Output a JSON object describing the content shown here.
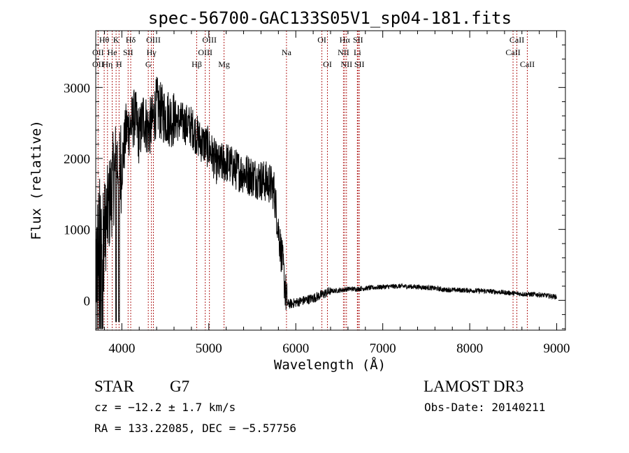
{
  "chart_data": {
    "type": "line",
    "title": "spec-56700-GAC133S05V1_sp04-181.fits",
    "xlabel": "Wavelength (Å)",
    "ylabel": "Flux (relative)",
    "xlim": [
      3700,
      9100
    ],
    "ylim": [
      -420,
      3800
    ],
    "xticks": [
      4000,
      5000,
      6000,
      7000,
      8000,
      9000
    ],
    "yticks": [
      0,
      1000,
      2000,
      3000
    ],
    "xtick_labels": [
      "4000",
      "5000",
      "6000",
      "7000",
      "8000",
      "9000"
    ],
    "ytick_labels": [
      "0",
      "1000",
      "2000",
      "3000"
    ],
    "series": [
      {
        "name": "flux",
        "color": "#000000",
        "x": [
          3700,
          3750,
          3800,
          3850,
          3900,
          3950,
          4000,
          4050,
          4100,
          4150,
          4200,
          4250,
          4300,
          4350,
          4400,
          4450,
          4500,
          4600,
          4700,
          4800,
          4900,
          5000,
          5100,
          5200,
          5300,
          5400,
          5500,
          5600,
          5700,
          5750,
          5800,
          5850,
          5880,
          5900,
          5950,
          6000,
          6100,
          6200,
          6300,
          6400,
          6500,
          6600,
          6700,
          6800,
          7000,
          7200,
          7400,
          7600,
          7700,
          8000,
          8200,
          8400,
          8600,
          8800,
          9000
        ],
        "y": [
          500,
          900,
          1000,
          1300,
          1700,
          2000,
          1900,
          2400,
          2450,
          2600,
          2300,
          2600,
          2400,
          2500,
          2750,
          2650,
          2600,
          2550,
          2500,
          2450,
          2250,
          2150,
          1900,
          1950,
          1850,
          1800,
          1750,
          1700,
          1650,
          1550,
          1000,
          500,
          150,
          -50,
          -50,
          -30,
          0,
          30,
          80,
          130,
          140,
          160,
          160,
          170,
          190,
          200,
          190,
          170,
          150,
          140,
          130,
          110,
          90,
          80,
          50
        ]
      }
    ],
    "line_labels": [
      {
        "label": "Hδ",
        "x": 4102,
        "row": 0
      },
      {
        "label": "K",
        "x": 3934,
        "row": 0
      },
      {
        "label": "Hθ",
        "x": 3797,
        "row": 0
      },
      {
        "label": "OII",
        "x": 3727,
        "row": 1
      },
      {
        "label": "He",
        "x": 3889,
        "row": 1
      },
      {
        "label": "SII",
        "x": 4072,
        "row": 1
      },
      {
        "label": "OII",
        "x": 3727,
        "row": 2
      },
      {
        "label": "Hη",
        "x": 3835,
        "row": 2
      },
      {
        "label": "H",
        "x": 3968,
        "row": 2
      },
      {
        "label": "OIII",
        "x": 4363,
        "row": 0
      },
      {
        "label": "Hγ",
        "x": 4340,
        "row": 1
      },
      {
        "label": "G",
        "x": 4304,
        "row": 2
      },
      {
        "label": "Hβ",
        "x": 4861,
        "row": 2
      },
      {
        "label": "OIII",
        "x": 5007,
        "row": 0
      },
      {
        "label": "OIII",
        "x": 4959,
        "row": 1
      },
      {
        "label": "Mg",
        "x": 5175,
        "row": 2
      },
      {
        "label": "Na",
        "x": 5893,
        "row": 1
      },
      {
        "label": "OI",
        "x": 6300,
        "row": 0
      },
      {
        "label": "OI",
        "x": 6364,
        "row": 2
      },
      {
        "label": "Hα",
        "x": 6563,
        "row": 0
      },
      {
        "label": "SII",
        "x": 6716,
        "row": 0
      },
      {
        "label": "NII",
        "x": 6548,
        "row": 1
      },
      {
        "label": "Li",
        "x": 6708,
        "row": 1
      },
      {
        "label": "NII",
        "x": 6583,
        "row": 2
      },
      {
        "label": "SII",
        "x": 6731,
        "row": 2
      },
      {
        "label": "CaII",
        "x": 8542,
        "row": 0
      },
      {
        "label": "CaII",
        "x": 8498,
        "row": 1
      },
      {
        "label": "CaII",
        "x": 8662,
        "row": 2
      }
    ],
    "line_positions": [
      3727,
      3797,
      3835,
      3889,
      3934,
      3968,
      4072,
      4102,
      4304,
      4340,
      4363,
      4861,
      4959,
      5007,
      5175,
      5893,
      6300,
      6364,
      6548,
      6563,
      6583,
      6708,
      6716,
      6731,
      8498,
      8542,
      8662
    ]
  },
  "footer": {
    "object_type": "STAR",
    "subclass": "G7",
    "survey": "LAMOST DR3",
    "cz": "cz = −12.2 ± 1.7 km/s",
    "obs_date": "Obs-Date: 20140211",
    "coords": "RA = 133.22085, DEC =  −5.57756"
  },
  "colors": {
    "line_marker": "#b22222",
    "spectrum": "#000000"
  }
}
